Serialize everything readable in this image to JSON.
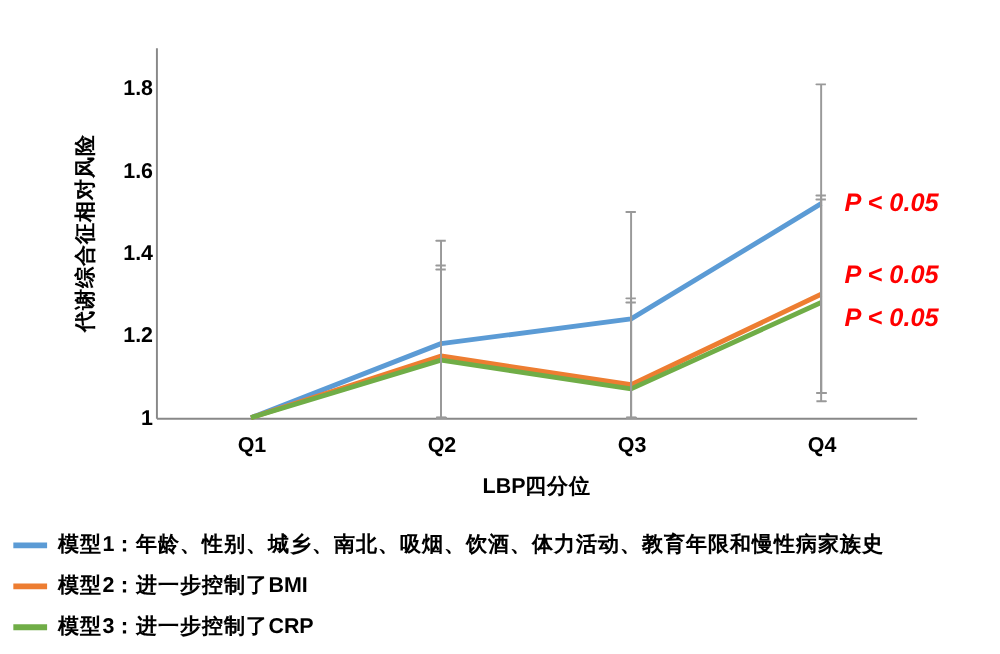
{
  "chart_data": {
    "type": "line",
    "xlabel": "LBP四分位",
    "ylabel": "代谢综合征相对风险",
    "categories": [
      "Q1",
      "Q2",
      "Q3",
      "Q4"
    ],
    "series": [
      {
        "name": "模型1：年龄、性别、城乡、南北、吸烟、饮酒、体力活动、教育年限和慢性病家族史",
        "color": "#5b9bd5",
        "values": [
          1.0,
          1.18,
          1.24,
          1.52
        ],
        "errors": [
          null,
          [
            1.0,
            1.43
          ],
          [
            1.0,
            1.5
          ],
          [
            1.04,
            1.81
          ]
        ]
      },
      {
        "name": "模型2：进一步控制了BMI",
        "color": "#ed7d31",
        "values": [
          1.0,
          1.15,
          1.08,
          1.3
        ],
        "errors": [
          null,
          [
            1.0,
            1.37
          ],
          [
            1.0,
            1.29
          ],
          [
            1.06,
            1.54
          ]
        ]
      },
      {
        "name": "模型3：进一步控制了CRP",
        "color": "#70ad47",
        "values": [
          1.0,
          1.14,
          1.07,
          1.28
        ],
        "errors": [
          null,
          [
            1.0,
            1.36
          ],
          [
            1.0,
            1.28
          ],
          [
            1.06,
            1.53
          ]
        ]
      }
    ],
    "ylim": [
      1,
      1.9
    ],
    "yticks": [
      1,
      1.2,
      1.4,
      1.6,
      1.8
    ],
    "annotations": [
      {
        "text": "P < 0.05",
        "x": "Q4",
        "y": 1.52
      },
      {
        "text": "P < 0.05",
        "x": "Q4",
        "y": 1.3
      },
      {
        "text": "P < 0.05",
        "x": "Q4",
        "y": 1.28
      }
    ],
    "grid": false,
    "legend": "bottom",
    "marker": "none",
    "line_style": "solid"
  }
}
